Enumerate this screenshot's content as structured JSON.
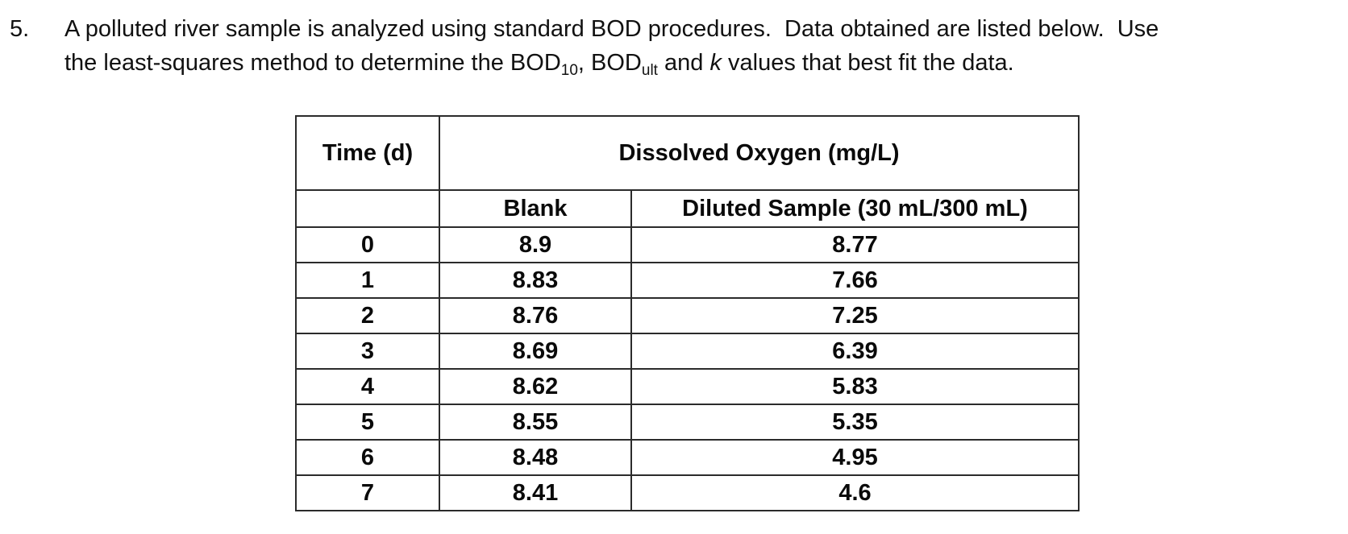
{
  "problem": {
    "number": "5.",
    "line1": "A polluted river sample is analyzed using standard BOD procedures.  Data obtained are listed below.  Use",
    "line2": {
      "pre": "the least-squares method to determine the BOD",
      "sub1": "10",
      "mid1": ", BOD",
      "sub2": "ult",
      "mid2": " and ",
      "k": "k",
      "post": " values that best fit the data."
    }
  },
  "table": {
    "header": {
      "time": "Time (d)",
      "dissolved_oxygen": "Dissolved Oxygen (mg/L)",
      "blank": "Blank",
      "diluted": "Diluted Sample (30 mL/300 mL)"
    },
    "rows": [
      {
        "time": "0",
        "blank": "8.9",
        "diluted": "8.77"
      },
      {
        "time": "1",
        "blank": "8.83",
        "diluted": "7.66"
      },
      {
        "time": "2",
        "blank": "8.76",
        "diluted": "7.25"
      },
      {
        "time": "3",
        "blank": "8.69",
        "diluted": "6.39"
      },
      {
        "time": "4",
        "blank": "8.62",
        "diluted": "5.83"
      },
      {
        "time": "5",
        "blank": "8.55",
        "diluted": "5.35"
      },
      {
        "time": "6",
        "blank": "8.48",
        "diluted": "4.95"
      },
      {
        "time": "7",
        "blank": "8.41",
        "diluted": "4.6"
      }
    ]
  }
}
